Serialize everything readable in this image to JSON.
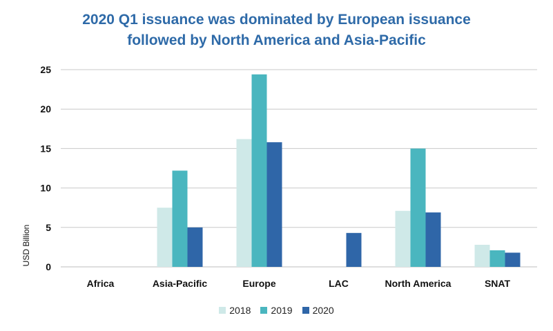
{
  "chart_data": {
    "type": "bar",
    "title_line1": "2020 Q1 issuance was dominated by European issuance",
    "title_line2": "followed by North America and Asia-Pacific",
    "xlabel": "",
    "ylabel": "USD Billion",
    "ylim": [
      0,
      25
    ],
    "yticks": [
      "0",
      "5",
      "10",
      "15",
      "20",
      "25"
    ],
    "grid": true,
    "legend_position": "bottom",
    "categories": [
      "Africa",
      "Asia-Pacific",
      "Europe",
      "LAC",
      "North America",
      "SNAT"
    ],
    "series": [
      {
        "name": "2018",
        "color": "#cfe9e8",
        "values": [
          0,
          7.5,
          16.2,
          0,
          7.1,
          2.8
        ]
      },
      {
        "name": "2019",
        "color": "#4ab6bf",
        "values": [
          0,
          12.2,
          24.4,
          0,
          15.0,
          2.1
        ]
      },
      {
        "name": "2020",
        "color": "#2f66a8",
        "values": [
          0,
          5.0,
          15.8,
          4.3,
          6.9,
          1.8
        ]
      }
    ]
  }
}
